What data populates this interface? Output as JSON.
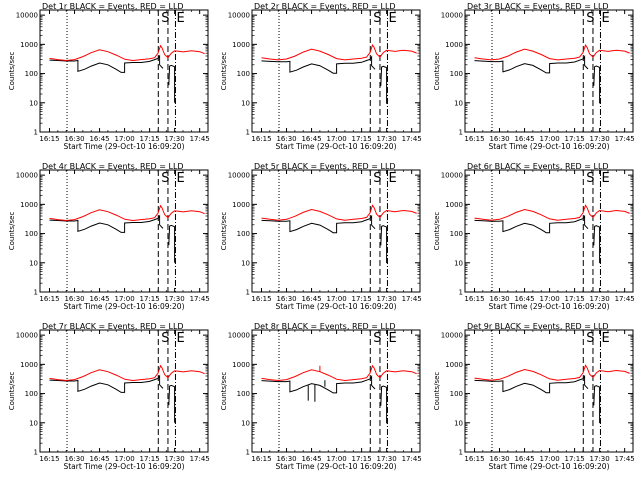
{
  "figure": {
    "panels": [
      {
        "title": "Det 1r BLACK = Events, RED = LLD",
        "xlabel": "Start Time (29-Oct-10 16:09:20)",
        "ylabel": "Counts/sec",
        "markers": [
          "S",
          "E"
        ],
        "black_offset": 0,
        "red_offset": 0,
        "spikes": false
      },
      {
        "title": "Det 2r BLACK = Events, RED = LLD",
        "xlabel": "Start Time (29-Oct-10 16:09:20)",
        "ylabel": "Counts/sec",
        "markers": [
          "S",
          "E"
        ],
        "black_offset": -0.03,
        "red_offset": 0.02,
        "spikes": false
      },
      {
        "title": "Det 3r BLACK = Events, RED = LLD",
        "xlabel": "Start Time (29-Oct-10 16:09:20)",
        "ylabel": "Counts/sec",
        "markers": [
          "S",
          "E"
        ],
        "black_offset": -0.02,
        "red_offset": 0.02,
        "spikes": false
      },
      {
        "title": "Det 4r BLACK = Events, RED = LLD",
        "xlabel": "Start Time (29-Oct-10 16:09:20)",
        "ylabel": "Counts/sec",
        "markers": [
          "S",
          "E"
        ],
        "black_offset": 0,
        "red_offset": 0,
        "spikes": false
      },
      {
        "title": "Det 5r BLACK = Events, RED = LLD",
        "xlabel": "Start Time (29-Oct-10 16:09:20)",
        "ylabel": "Counts/sec",
        "markers": [
          "S",
          "E"
        ],
        "black_offset": -0.01,
        "red_offset": 0.01,
        "spikes": false
      },
      {
        "title": "Det 6r BLACK = Events, RED = LLD",
        "xlabel": "Start Time (29-Oct-10 16:09:20)",
        "ylabel": "Counts/sec",
        "markers": [
          "S",
          "E"
        ],
        "black_offset": -0.01,
        "red_offset": 0.01,
        "spikes": false
      },
      {
        "title": "Det 7r BLACK = Events, RED = LLD",
        "xlabel": "Start Time (29-Oct-10 16:09:20)",
        "ylabel": "Counts/sec",
        "markers": [
          "S",
          "E"
        ],
        "black_offset": 0,
        "red_offset": 0,
        "spikes": false
      },
      {
        "title": "Det 8r BLACK = Events, RED = LLD",
        "xlabel": "Start Time (29-Oct-10 16:09:20)",
        "ylabel": "Counts/sec",
        "markers": [
          "S",
          "E"
        ],
        "black_offset": -0.02,
        "red_offset": 0,
        "spikes": true
      },
      {
        "title": "Det 9r BLACK = Events, RED = LLD",
        "xlabel": "Start Time (29-Oct-10 16:09:20)",
        "ylabel": "Counts/sec",
        "markers": [
          "S",
          "E"
        ],
        "black_offset": -0.01,
        "red_offset": 0.01,
        "spikes": false
      }
    ]
  },
  "chart_data": {
    "type": "line",
    "layout": "3x3 grid",
    "xaxis": {
      "tick_labels": [
        "16:15",
        "16:30",
        "16:45",
        "17:00",
        "17:15",
        "17:30",
        "17:45"
      ],
      "tick_minutes": [
        975,
        990,
        1005,
        1020,
        1035,
        1050,
        1065
      ],
      "xlim_minutes": [
        969.3,
        1070
      ]
    },
    "yaxis": {
      "scale": "log",
      "ylim": [
        1,
        15000
      ],
      "tick_labels": [
        "1",
        "10",
        "100",
        "1000",
        "10000"
      ],
      "tick_values": [
        1,
        10,
        100,
        1000,
        10000
      ]
    },
    "vertical_lines": [
      {
        "minute": 985.5,
        "style": "dotted"
      },
      {
        "minute": 1040.2,
        "style": "dashed"
      },
      {
        "minute": 1046.0,
        "style": "dashed"
      },
      {
        "minute": 1050.5,
        "style": "dash-dot"
      }
    ],
    "series_colors": {
      "events": "#000000",
      "lld": "#ff0000"
    },
    "series": [
      {
        "name": "Events",
        "color": "#000000",
        "x": [
          975,
          980,
          985,
          990,
          992,
          992,
          996,
          1000,
          1005,
          1010,
          1015,
          1018,
          1020,
          1020,
          1025,
          1030,
          1035,
          1038,
          1040,
          1041,
          1041,
          1043
        ],
        "y": [
          290,
          280,
          270,
          270,
          280,
          120,
          140,
          180,
          230,
          200,
          140,
          110,
          110,
          230,
          240,
          240,
          260,
          300,
          330,
          400,
          200,
          150
        ]
      },
      {
        "name": "LLD",
        "color": "#ff0000",
        "x": [
          975,
          980,
          985,
          990,
          995,
          1000,
          1005,
          1010,
          1015,
          1020,
          1025,
          1030,
          1035,
          1038,
          1040,
          1041.5,
          1042.5,
          1044,
          1046,
          1048,
          1050,
          1055,
          1060,
          1065,
          1068
        ],
        "y": [
          330,
          300,
          280,
          300,
          380,
          520,
          650,
          560,
          430,
          310,
          280,
          300,
          320,
          350,
          500,
          900,
          750,
          450,
          350,
          500,
          600,
          550,
          600,
          560,
          480
        ]
      },
      {
        "name": "Events (after gap)",
        "color": "#000000",
        "x": [
          1046.5,
          1047,
          1048,
          1049,
          1050,
          1050
        ],
        "y": [
          40,
          180,
          190,
          180,
          170,
          10
        ]
      }
    ]
  }
}
